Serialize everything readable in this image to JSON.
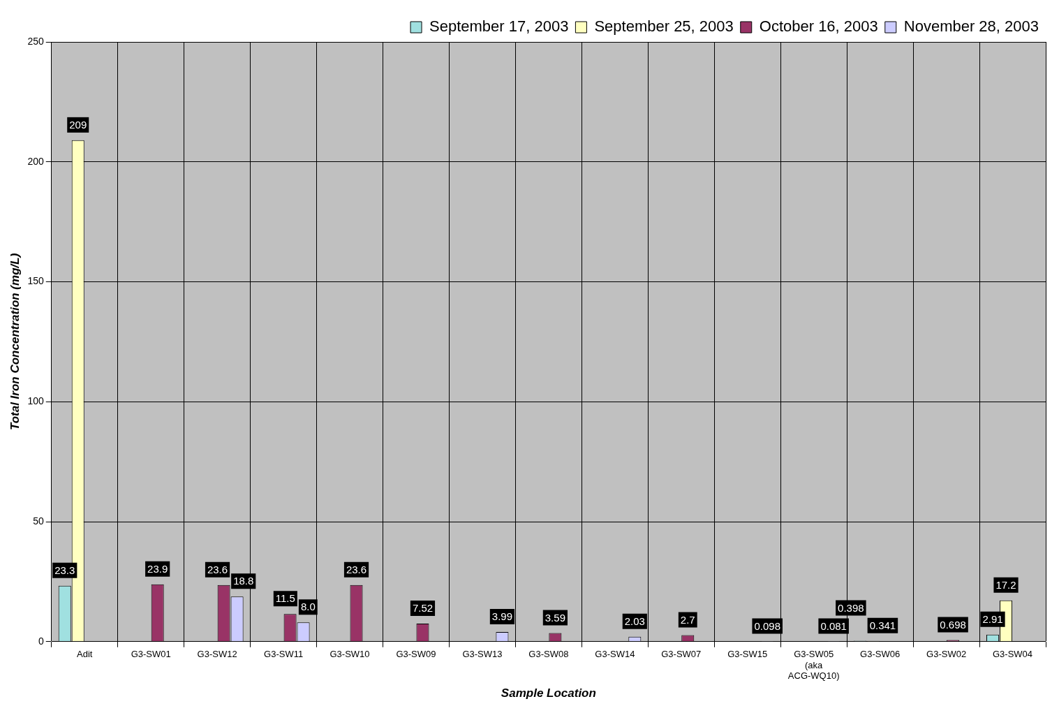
{
  "chart_data": {
    "type": "bar",
    "xlabel": "Sample Location",
    "ylabel": "Total Iron Concentration (mg/L)",
    "categories": [
      "Adit",
      "G3-SW01",
      "G3-SW12",
      "G3-SW11",
      "G3-SW10",
      "G3-SW09",
      "G3-SW13",
      "G3-SW08",
      "G3-SW14",
      "G3-SW07",
      "G3-SW15",
      "G3-SW05 (aka ACG-WQ10)",
      "G3-SW06",
      "G3-SW02",
      "G3-SW04"
    ],
    "series": [
      {
        "name": "September 17, 2003",
        "color": "#a0e0e0",
        "values": [
          23.3,
          0,
          0,
          0,
          0,
          0,
          0,
          0,
          0,
          0,
          0,
          0,
          0.398,
          0,
          2.91
        ],
        "value_labels": [
          "23.3",
          null,
          null,
          null,
          null,
          null,
          null,
          null,
          null,
          null,
          null,
          null,
          "0.398",
          null,
          "2.91"
        ]
      },
      {
        "name": "September 25, 2003",
        "color": "#ffffc0",
        "values": [
          209,
          0,
          0,
          0,
          0,
          0,
          0,
          0,
          0,
          0,
          0,
          0,
          0.341,
          0,
          17.2
        ],
        "value_labels": [
          "209",
          null,
          null,
          null,
          null,
          null,
          null,
          null,
          null,
          null,
          null,
          null,
          "0.341",
          null,
          "17.2"
        ]
      },
      {
        "name": "October 16, 2003",
        "color": "#993366",
        "values": [
          0,
          23.9,
          23.6,
          11.5,
          23.6,
          7.52,
          0,
          3.59,
          0,
          2.7,
          0,
          0,
          0,
          0.698,
          0
        ],
        "value_labels": [
          null,
          "23.9",
          "23.6",
          "11.5",
          "23.6",
          "7.52",
          null,
          "3.59",
          null,
          "2.7",
          null,
          null,
          null,
          "0.698",
          null
        ]
      },
      {
        "name": "November 28, 2003",
        "color": "#ccccff",
        "values": [
          0,
          0,
          18.8,
          8.0,
          0,
          0,
          3.99,
          0,
          2.03,
          0,
          0.098,
          0.081,
          0,
          0,
          0
        ],
        "value_labels": [
          null,
          null,
          "18.8",
          "8.0",
          null,
          null,
          "3.99",
          null,
          "2.03",
          null,
          "0.098",
          "0.081",
          null,
          null,
          null
        ]
      }
    ],
    "ylim": [
      0,
      250
    ],
    "yticks": [
      0,
      50,
      100,
      150,
      200,
      250
    ],
    "grid": true,
    "legend": "top right"
  }
}
